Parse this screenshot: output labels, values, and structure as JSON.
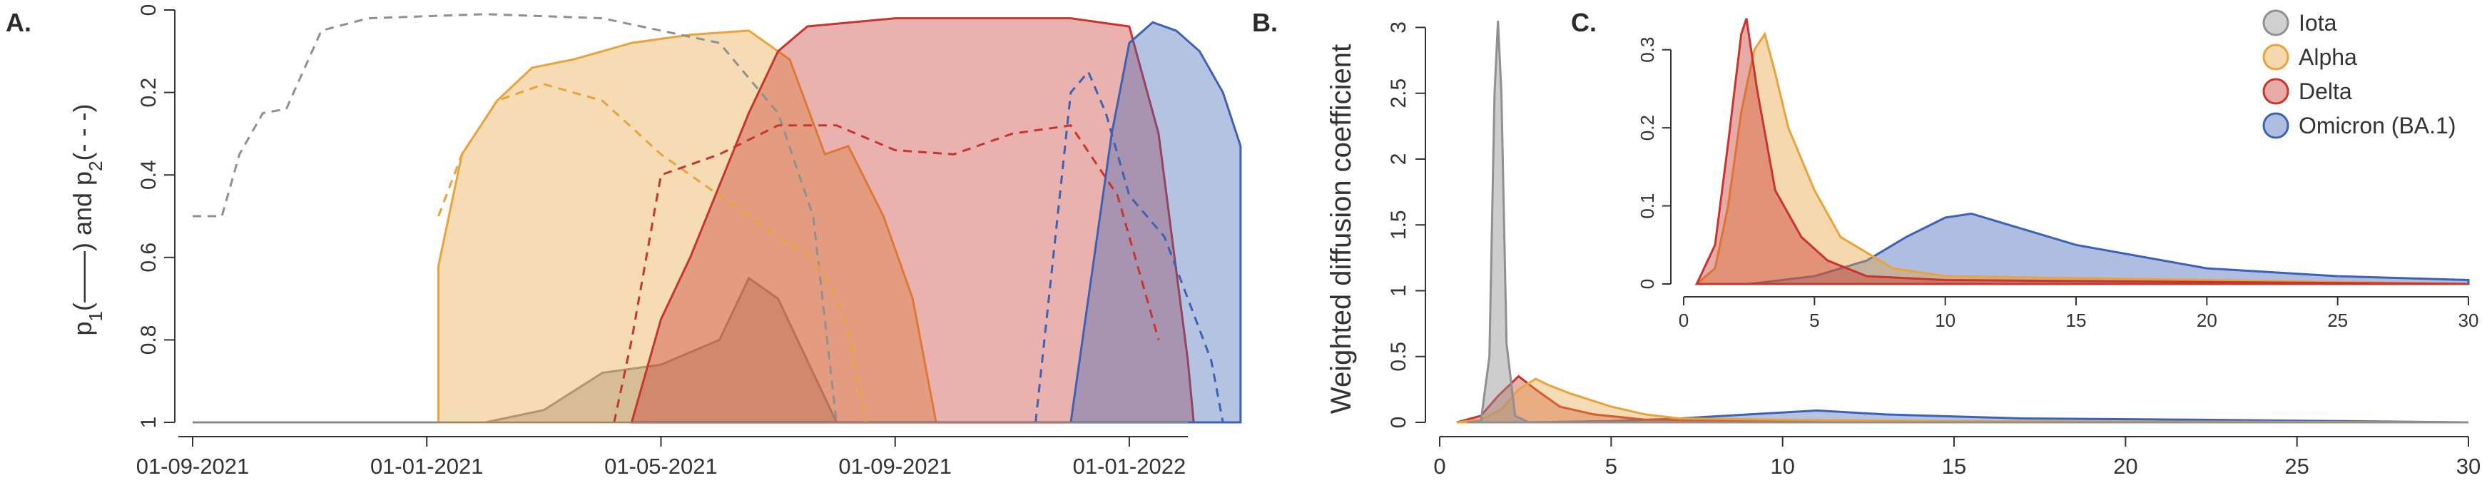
{
  "colors": {
    "iota": "#909090",
    "alpha": "#E8A33D",
    "delta": "#C8352C",
    "omicron": "#3D62B5",
    "axis": "#333333"
  },
  "chart_data": [
    {
      "panel": "A.",
      "type": "area",
      "ylabel_parts": [
        "p",
        "1",
        "(——) and p",
        "2",
        "(- - -)"
      ],
      "x_ticks": [
        "01-09-2021",
        "01-01-2021",
        "01-05-2021",
        "01-09-2021",
        "01-01-2022"
      ],
      "y_ticks": [
        "0",
        "0.2",
        "0.4",
        "0.6",
        "0.8",
        "1"
      ],
      "ylim": [
        1,
        0
      ],
      "time_range_months": [
        0,
        17
      ],
      "note": "x in months from first tick; y inverted (0 at top)",
      "series": [
        {
          "key": "iota",
          "p1": [
            [
              0,
              1
            ],
            [
              4,
              1
            ],
            [
              5,
              1
            ],
            [
              6,
              0.97
            ],
            [
              7,
              0.88
            ],
            [
              8,
              0.86
            ],
            [
              9,
              0.8
            ],
            [
              9.5,
              0.65
            ],
            [
              10,
              0.7
            ],
            [
              10.5,
              0.85
            ],
            [
              11,
              1
            ],
            [
              17,
              1
            ]
          ],
          "p2": [
            [
              0,
              0.5
            ],
            [
              0.5,
              0.5
            ],
            [
              0.8,
              0.35
            ],
            [
              1.2,
              0.25
            ],
            [
              1.6,
              0.24
            ],
            [
              2.2,
              0.05
            ],
            [
              3,
              0.02
            ],
            [
              5,
              0.01
            ],
            [
              7,
              0.02
            ],
            [
              9,
              0.08
            ],
            [
              10,
              0.25
            ],
            [
              10.6,
              0.5
            ],
            [
              11,
              1
            ]
          ]
        },
        {
          "key": "alpha",
          "p1": [
            [
              4.2,
              0.62
            ],
            [
              4.6,
              0.35
            ],
            [
              5.2,
              0.22
            ],
            [
              5.8,
              0.14
            ],
            [
              6.5,
              0.12
            ],
            [
              7.5,
              0.08
            ],
            [
              8.5,
              0.06
            ],
            [
              9.5,
              0.05
            ],
            [
              10.2,
              0.12
            ],
            [
              10.8,
              0.35
            ],
            [
              11.2,
              0.33
            ],
            [
              11.8,
              0.5
            ],
            [
              12.3,
              0.7
            ],
            [
              12.7,
              1
            ]
          ],
          "p2": [
            [
              4.2,
              0.5
            ],
            [
              4.6,
              0.35
            ],
            [
              5.2,
              0.22
            ],
            [
              6,
              0.18
            ],
            [
              7,
              0.22
            ],
            [
              8,
              0.35
            ],
            [
              9,
              0.45
            ],
            [
              10,
              0.55
            ],
            [
              10.6,
              0.6
            ],
            [
              11,
              0.7
            ],
            [
              11.2,
              0.78
            ],
            [
              11.5,
              1
            ]
          ]
        },
        {
          "key": "delta",
          "p1": [
            [
              7.5,
              1
            ],
            [
              8,
              0.75
            ],
            [
              8.5,
              0.6
            ],
            [
              9.5,
              0.25
            ],
            [
              10,
              0.1
            ],
            [
              10.5,
              0.04
            ],
            [
              12,
              0.02
            ],
            [
              15,
              0.02
            ],
            [
              16,
              0.04
            ],
            [
              16.5,
              0.3
            ],
            [
              17,
              0.85
            ],
            [
              17.1,
              1
            ]
          ],
          "p2": [
            [
              7.2,
              1
            ],
            [
              7.5,
              0.8
            ],
            [
              8,
              0.4
            ],
            [
              9,
              0.35
            ],
            [
              10,
              0.28
            ],
            [
              11,
              0.28
            ],
            [
              12,
              0.34
            ],
            [
              13,
              0.35
            ],
            [
              14,
              0.3
            ],
            [
              15,
              0.28
            ],
            [
              15.8,
              0.45
            ],
            [
              16.2,
              0.65
            ],
            [
              16.5,
              0.8
            ]
          ]
        },
        {
          "key": "omicron",
          "p1": [
            [
              15,
              1
            ],
            [
              15.3,
              0.7
            ],
            [
              15.7,
              0.3
            ],
            [
              16,
              0.08
            ],
            [
              16.4,
              0.03
            ],
            [
              16.8,
              0.05
            ],
            [
              17.2,
              0.1
            ],
            [
              17.6,
              0.2
            ],
            [
              17.9,
              0.33
            ]
          ],
          "p2": [
            [
              14.4,
              1
            ],
            [
              14.7,
              0.6
            ],
            [
              15,
              0.2
            ],
            [
              15.3,
              0.15
            ],
            [
              15.6,
              0.25
            ],
            [
              16,
              0.45
            ],
            [
              16.6,
              0.55
            ],
            [
              17,
              0.7
            ],
            [
              17.4,
              0.85
            ],
            [
              17.6,
              1
            ]
          ]
        }
      ]
    },
    {
      "panel": "B.",
      "type": "area",
      "ylabel": "Weighted diffusion coefficient",
      "x_ticks": [
        "0",
        "5",
        "10",
        "15",
        "20",
        "25",
        "30"
      ],
      "y_ticks": [
        "0",
        "0.5",
        "1",
        "1.5",
        "2",
        "2.5",
        "3"
      ],
      "xlim": [
        0,
        30
      ],
      "ylim": [
        0,
        3.1
      ],
      "series": [
        {
          "key": "iota",
          "points": [
            [
              0.8,
              0
            ],
            [
              1.2,
              0.01
            ],
            [
              1.45,
              0.5
            ],
            [
              1.6,
              2.5
            ],
            [
              1.7,
              3.05
            ],
            [
              1.8,
              2.5
            ],
            [
              1.95,
              0.6
            ],
            [
              2.2,
              0.05
            ],
            [
              2.6,
              0
            ],
            [
              30,
              0
            ]
          ]
        },
        {
          "key": "alpha",
          "points": [
            [
              0.5,
              0
            ],
            [
              1.2,
              0.02
            ],
            [
              1.8,
              0.1
            ],
            [
              2.3,
              0.25
            ],
            [
              2.8,
              0.33
            ],
            [
              3.2,
              0.28
            ],
            [
              3.8,
              0.22
            ],
            [
              5,
              0.12
            ],
            [
              6,
              0.06
            ],
            [
              7,
              0.03
            ],
            [
              10,
              0.02
            ],
            [
              15,
              0.01
            ],
            [
              30,
              0
            ]
          ]
        },
        {
          "key": "delta",
          "points": [
            [
              0.5,
              0
            ],
            [
              1.2,
              0.05
            ],
            [
              1.7,
              0.2
            ],
            [
              2.3,
              0.35
            ],
            [
              2.8,
              0.25
            ],
            [
              3.5,
              0.12
            ],
            [
              4.5,
              0.06
            ],
            [
              6,
              0.02
            ],
            [
              10,
              0.01
            ],
            [
              30,
              0
            ]
          ]
        },
        {
          "key": "omicron",
          "points": [
            [
              2.5,
              0
            ],
            [
              5,
              0.01
            ],
            [
              7,
              0.03
            ],
            [
              9,
              0.06
            ],
            [
              11,
              0.09
            ],
            [
              13,
              0.06
            ],
            [
              17,
              0.03
            ],
            [
              22,
              0.02
            ],
            [
              30,
              0
            ]
          ]
        }
      ]
    },
    {
      "panel": "C.",
      "type": "area",
      "x_ticks": [
        "0",
        "5",
        "10",
        "15",
        "20",
        "25",
        "30"
      ],
      "y_ticks": [
        "0",
        "0.1",
        "0.2",
        "0.3"
      ],
      "xlim": [
        0,
        30
      ],
      "ylim": [
        0,
        0.35
      ],
      "legend_placement": "top-right",
      "legend": [
        "Iota",
        "Alpha",
        "Delta",
        "Omicron (BA.1)"
      ],
      "series": [
        {
          "key": "alpha",
          "points": [
            [
              0.5,
              0
            ],
            [
              1.2,
              0.02
            ],
            [
              1.7,
              0.1
            ],
            [
              2.2,
              0.22
            ],
            [
              2.7,
              0.3
            ],
            [
              3.1,
              0.32
            ],
            [
              3.5,
              0.27
            ],
            [
              4,
              0.2
            ],
            [
              5,
              0.12
            ],
            [
              6,
              0.06
            ],
            [
              7,
              0.04
            ],
            [
              8,
              0.02
            ],
            [
              10,
              0.01
            ],
            [
              20,
              0.005
            ],
            [
              30,
              0
            ]
          ]
        },
        {
          "key": "delta",
          "points": [
            [
              0.5,
              0
            ],
            [
              1.2,
              0.05
            ],
            [
              1.7,
              0.18
            ],
            [
              2.2,
              0.32
            ],
            [
              2.4,
              0.34
            ],
            [
              2.8,
              0.25
            ],
            [
              3.5,
              0.12
            ],
            [
              4.5,
              0.06
            ],
            [
              5.5,
              0.03
            ],
            [
              7,
              0.01
            ],
            [
              10,
              0.005
            ],
            [
              30,
              0
            ]
          ]
        },
        {
          "key": "omicron",
          "points": [
            [
              2.5,
              0
            ],
            [
              5,
              0.01
            ],
            [
              7,
              0.03
            ],
            [
              8.5,
              0.06
            ],
            [
              10,
              0.085
            ],
            [
              11,
              0.09
            ],
            [
              12.5,
              0.075
            ],
            [
              15,
              0.05
            ],
            [
              20,
              0.02
            ],
            [
              25,
              0.01
            ],
            [
              30,
              0.005
            ]
          ]
        }
      ]
    }
  ]
}
